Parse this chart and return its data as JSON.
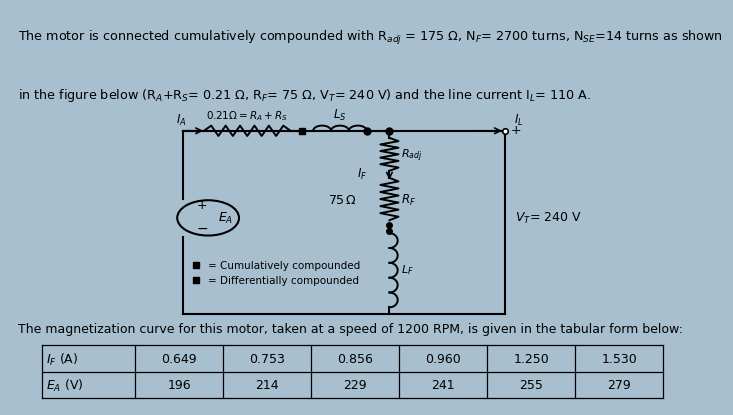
{
  "bg_color": "#a8bfcf",
  "circuit_bg": "#cdd9e3",
  "line1": "The motor is connected cumulatively compounded with R$_{adj}$ = 175 Ω, N$_F$= 2700 turns, N$_{SE}$=14 turns as shown",
  "line2": "in the figure below (R$_A$+R$_S$= 0.21 Ω, R$_F$= 75 Ω, V$_T$= 240 V) and the line current I$_L$= 110 A.",
  "table_title": "The magnetization curve for this motor, taken at a speed of 1200 RPM, is given in the tabular form below:",
  "if_values": [
    "0.649",
    "0.753",
    "0.856",
    "0.960",
    "1.250",
    "1.530"
  ],
  "ea_values": [
    "196",
    "214",
    "229",
    "241",
    "255",
    "279"
  ],
  "row1_label": "$I_F$ (A)",
  "row2_label": "$E_A$ (V)"
}
